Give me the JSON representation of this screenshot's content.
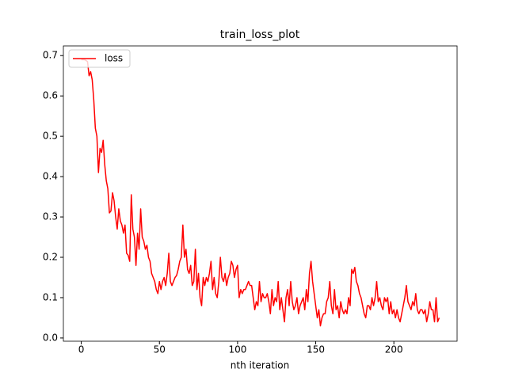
{
  "chart_data": {
    "type": "line",
    "title": "train_loss_plot",
    "x_label": "nth iteration",
    "xlim": [
      -11.45,
      240.45
    ],
    "xticks": [
      0,
      50,
      100,
      150,
      200
    ],
    "ylim": [
      -0.008,
      0.724
    ],
    "yticks": [
      {
        "value": 0,
        "label": "0.0"
      },
      0.1,
      0.2,
      0.3,
      0.4,
      0.5,
      0.6,
      0.7
    ],
    "legend": "upper left",
    "grid": false,
    "series": [
      {
        "name": "loss",
        "color": "#ff0000",
        "values": [
          0.69,
          0.69,
          0.69,
          0.688,
          0.685,
          0.65,
          0.66,
          0.64,
          0.59,
          0.52,
          0.5,
          0.41,
          0.47,
          0.46,
          0.49,
          0.43,
          0.39,
          0.37,
          0.31,
          0.315,
          0.36,
          0.34,
          0.3,
          0.27,
          0.32,
          0.29,
          0.28,
          0.26,
          0.28,
          0.21,
          0.205,
          0.19,
          0.355,
          0.27,
          0.25,
          0.18,
          0.26,
          0.22,
          0.32,
          0.25,
          0.24,
          0.22,
          0.23,
          0.2,
          0.19,
          0.16,
          0.15,
          0.14,
          0.12,
          0.11,
          0.14,
          0.12,
          0.14,
          0.15,
          0.13,
          0.16,
          0.21,
          0.14,
          0.13,
          0.14,
          0.15,
          0.155,
          0.17,
          0.19,
          0.2,
          0.28,
          0.2,
          0.22,
          0.17,
          0.16,
          0.18,
          0.13,
          0.14,
          0.22,
          0.12,
          0.16,
          0.1,
          0.08,
          0.15,
          0.13,
          0.15,
          0.14,
          0.16,
          0.19,
          0.12,
          0.15,
          0.11,
          0.1,
          0.14,
          0.2,
          0.15,
          0.14,
          0.16,
          0.13,
          0.15,
          0.16,
          0.19,
          0.18,
          0.15,
          0.17,
          0.18,
          0.1,
          0.12,
          0.11,
          0.12,
          0.12,
          0.13,
          0.14,
          0.13,
          0.13,
          0.1,
          0.07,
          0.09,
          0.08,
          0.14,
          0.09,
          0.11,
          0.1,
          0.1,
          0.11,
          0.09,
          0.06,
          0.12,
          0.08,
          0.1,
          0.09,
          0.14,
          0.07,
          0.1,
          0.07,
          0.04,
          0.1,
          0.12,
          0.08,
          0.14,
          0.09,
          0.07,
          0.08,
          0.1,
          0.06,
          0.08,
          0.09,
          0.1,
          0.07,
          0.12,
          0.09,
          0.16,
          0.19,
          0.14,
          0.11,
          0.08,
          0.05,
          0.07,
          0.03,
          0.05,
          0.06,
          0.06,
          0.09,
          0.1,
          0.14,
          0.08,
          0.06,
          0.12,
          0.07,
          0.08,
          0.05,
          0.09,
          0.07,
          0.06,
          0.07,
          0.06,
          0.1,
          0.08,
          0.17,
          0.16,
          0.175,
          0.14,
          0.13,
          0.11,
          0.1,
          0.08,
          0.06,
          0.05,
          0.08,
          0.08,
          0.07,
          0.1,
          0.08,
          0.1,
          0.14,
          0.09,
          0.1,
          0.08,
          0.07,
          0.1,
          0.09,
          0.1,
          0.06,
          0.09,
          0.06,
          0.07,
          0.05,
          0.07,
          0.05,
          0.04,
          0.06,
          0.08,
          0.1,
          0.13,
          0.09,
          0.08,
          0.07,
          0.09,
          0.08,
          0.11,
          0.07,
          0.06,
          0.07,
          0.07,
          0.06,
          0.07,
          0.04,
          0.06,
          0.09,
          0.07,
          0.07,
          0.04,
          0.1,
          0.04,
          0.05
        ]
      }
    ]
  }
}
